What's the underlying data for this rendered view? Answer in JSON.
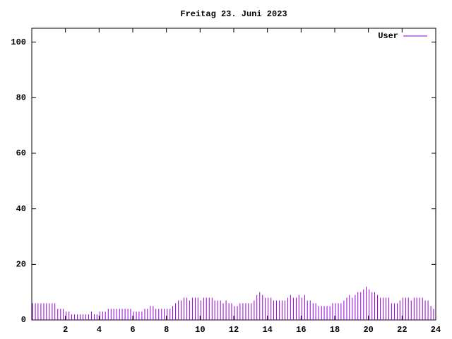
{
  "chart_data": {
    "type": "impulses",
    "title": "Freitag 23. Juni 2023",
    "xlim": [
      0,
      24
    ],
    "xticks": [
      2,
      4,
      6,
      8,
      10,
      12,
      14,
      16,
      18,
      20,
      22,
      24
    ],
    "ylim": [
      0,
      105
    ],
    "yticks": [
      0,
      20,
      40,
      60,
      80,
      100
    ],
    "legend": "top-right",
    "series": [
      {
        "name": "User",
        "color": "#9400d3",
        "x": [
          0,
          0.17,
          0.33,
          0.5,
          0.67,
          0.83,
          1,
          1.17,
          1.33,
          1.5,
          1.67,
          1.83,
          2,
          2.17,
          2.33,
          2.5,
          2.67,
          2.83,
          3,
          3.17,
          3.33,
          3.5,
          3.67,
          3.83,
          4,
          4.17,
          4.33,
          4.5,
          4.67,
          4.83,
          5,
          5.17,
          5.33,
          5.5,
          5.67,
          5.83,
          6,
          6.17,
          6.33,
          6.5,
          6.67,
          6.83,
          7,
          7.17,
          7.33,
          7.5,
          7.67,
          7.83,
          8,
          8.17,
          8.33,
          8.5,
          8.67,
          8.83,
          9,
          9.17,
          9.33,
          9.5,
          9.67,
          9.83,
          10,
          10.17,
          10.33,
          10.5,
          10.67,
          10.83,
          11,
          11.17,
          11.33,
          11.5,
          11.67,
          11.83,
          12,
          12.17,
          12.33,
          12.5,
          12.67,
          12.83,
          13,
          13.17,
          13.33,
          13.5,
          13.67,
          13.83,
          14,
          14.17,
          14.33,
          14.5,
          14.67,
          14.83,
          15,
          15.17,
          15.33,
          15.5,
          15.67,
          15.83,
          16,
          16.17,
          16.33,
          16.5,
          16.67,
          16.83,
          17,
          17.17,
          17.33,
          17.5,
          17.67,
          17.83,
          18,
          18.17,
          18.33,
          18.5,
          18.67,
          18.83,
          19,
          19.17,
          19.33,
          19.5,
          19.67,
          19.83,
          20,
          20.17,
          20.33,
          20.5,
          20.67,
          20.83,
          21,
          21.17,
          21.33,
          21.5,
          21.67,
          21.83,
          22,
          22.17,
          22.33,
          22.5,
          22.67,
          22.83,
          23,
          23.17,
          23.33,
          23.5,
          23.67,
          23.83
        ],
        "values": [
          6,
          6,
          6,
          6,
          6,
          6,
          6,
          6,
          6,
          4,
          4,
          4,
          3,
          3,
          2,
          2,
          2,
          2,
          2,
          2,
          2,
          3,
          2,
          2,
          3,
          3,
          3,
          4,
          4,
          4,
          4,
          4,
          4,
          4,
          4,
          4,
          3,
          3,
          3,
          3,
          4,
          4,
          5,
          5,
          4,
          4,
          4,
          4,
          4,
          4,
          5,
          6,
          7,
          7,
          8,
          8,
          7,
          8,
          8,
          8,
          7,
          8,
          8,
          8,
          8,
          7,
          7,
          7,
          6,
          7,
          6,
          6,
          5,
          5,
          6,
          6,
          6,
          6,
          6,
          7,
          9,
          10,
          9,
          8,
          8,
          8,
          7,
          7,
          7,
          7,
          7,
          8,
          9,
          8,
          8,
          9,
          8,
          9,
          7,
          7,
          6,
          6,
          5,
          5,
          5,
          5,
          5,
          6,
          6,
          6,
          6,
          7,
          8,
          9,
          8,
          9,
          10,
          10,
          11,
          12,
          11,
          10,
          10,
          9,
          8,
          8,
          8,
          8,
          6,
          6,
          6,
          7,
          8,
          8,
          8,
          7,
          8,
          8,
          8,
          8,
          7,
          7,
          5,
          4
        ]
      }
    ]
  }
}
